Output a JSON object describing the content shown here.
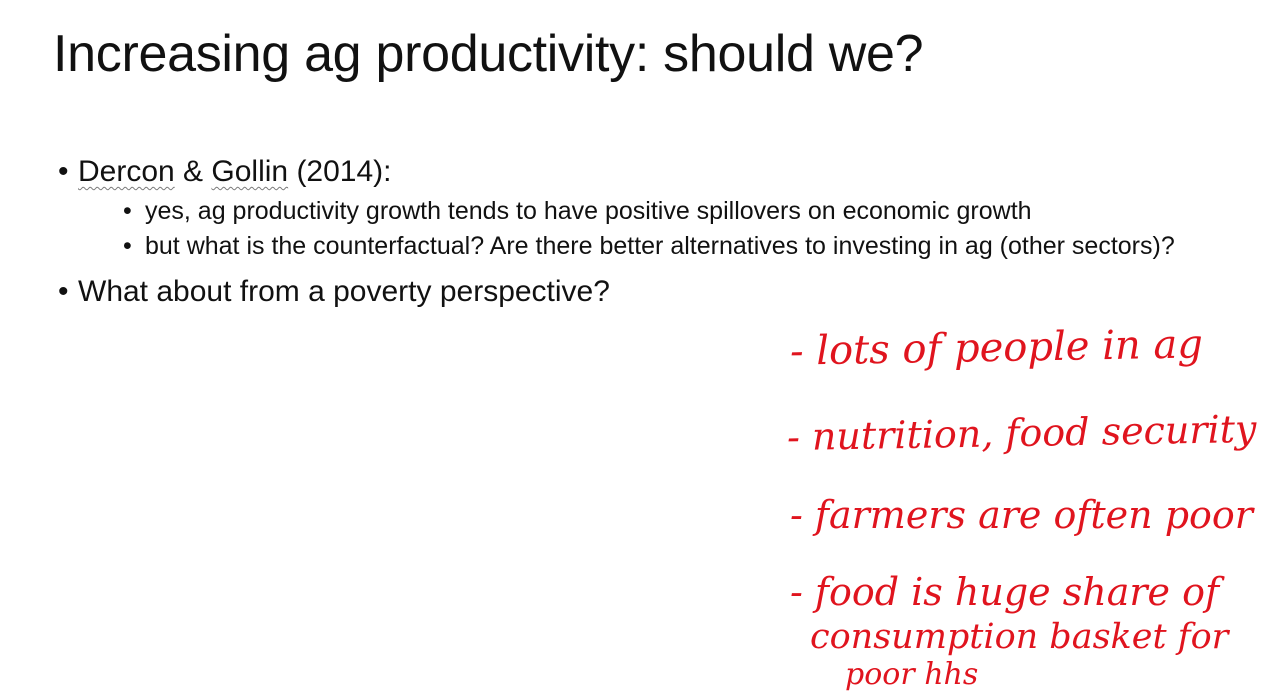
{
  "slide": {
    "title": "Increasing ag productivity: should we?",
    "bullets": [
      {
        "author1": "Dercon",
        "amp": " & ",
        "author2": "Gollin",
        "year": " (2014):",
        "sub": [
          "yes, ag productivity growth tends to have positive spillovers on economic growth",
          "but what is the counterfactual? Are there better alternatives to investing in ag (other sectors)?"
        ]
      },
      {
        "text": "What about from a poverty perspective?"
      }
    ],
    "handwritten_notes": [
      "- lots of people in ag",
      "- nutrition, food security",
      "- farmers are often poor",
      "- food is huge share of",
      "consumption basket for",
      "poor hhs"
    ],
    "colors": {
      "ink": "#e0141e",
      "text": "#111111",
      "background": "#ffffff"
    }
  }
}
